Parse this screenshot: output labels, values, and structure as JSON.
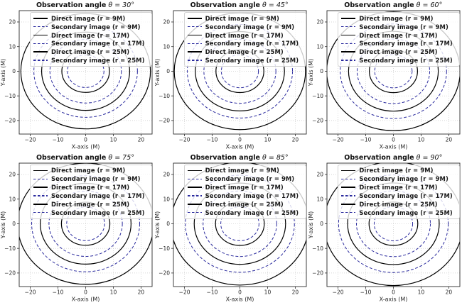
{
  "figure": {
    "background": "#ffffff",
    "rows": 2,
    "cols": 3
  },
  "style": {
    "direct_color": "#000000",
    "secondary_color": "#2b2b9e",
    "grid_color": "#c9c9c9",
    "spine_color": "#2b2b2b",
    "tick_label_color": "#3a3a3a"
  },
  "chart_data": [
    {
      "type": "line",
      "title": "Observation angle θ = 30°",
      "title_prefix": "Observation angle",
      "title_math": "θ = 30°",
      "xlabel": "X-axis (M)",
      "ylabel": "Y-axis (M)",
      "xticks": [
        -20,
        -10,
        0,
        10,
        20
      ],
      "yticks": [
        -20,
        -10,
        0,
        10,
        20
      ],
      "xlim": [
        -24,
        24
      ],
      "ylim": [
        -25.5,
        24.6
      ],
      "grid": true,
      "legend_position": "upper right",
      "series": [
        {
          "name": "Direct image (r = 9M)",
          "shape": "circle",
          "center": [
            0,
            0
          ],
          "radius": 8.6,
          "linestyle": "solid",
          "color": "#000000"
        },
        {
          "name": "Secondary image (r = 9M)",
          "shape": "circle",
          "center": [
            0,
            0
          ],
          "radius": 6.6,
          "linestyle": "dashed",
          "color": "#2b2b9e"
        },
        {
          "name": "Direct image (r = 17M)",
          "shape": "circle",
          "center": [
            0,
            0
          ],
          "radius": 15.9,
          "linestyle": "solid",
          "color": "#000000"
        },
        {
          "name": "Secondary image (r = 17M)",
          "shape": "circle",
          "center": [
            0,
            0
          ],
          "radius": 12.9,
          "linestyle": "dashed",
          "color": "#2b2b9e"
        },
        {
          "name": "Direct image (r = 25M)",
          "shape": "circle",
          "center": [
            0,
            0
          ],
          "radius": 23.4,
          "linestyle": "solid",
          "color": "#000000"
        },
        {
          "name": "Secondary image (r = 25M)",
          "shape": "circle",
          "center": [
            0,
            0
          ],
          "radius": 18.7,
          "linestyle": "dashed",
          "color": "#2b2b9e"
        }
      ]
    },
    {
      "type": "line",
      "title": "Observation angle θ = 45°",
      "title_prefix": "Observation angle",
      "title_math": "θ = 45°",
      "xlabel": "X-axis (M)",
      "ylabel": "Y-axis (M)",
      "xticks": [
        -20,
        -10,
        0,
        10,
        20
      ],
      "yticks": [
        -20,
        -10,
        0,
        10,
        20
      ],
      "xlim": [
        -24,
        24
      ],
      "ylim": [
        -25.5,
        24.6
      ],
      "grid": true,
      "legend_position": "upper right",
      "series": [
        {
          "name": "Direct image (r = 9M)",
          "shape": "circle",
          "center": [
            0,
            0
          ],
          "radius": 8.65,
          "linestyle": "solid",
          "color": "#000000"
        },
        {
          "name": "Secondary image (r = 9M)",
          "shape": "circle",
          "center": [
            0,
            0
          ],
          "radius": 6.7,
          "linestyle": "dashed",
          "color": "#2b2b9e"
        },
        {
          "name": "Direct image (r = 17M)",
          "shape": "circle",
          "center": [
            0,
            0
          ],
          "radius": 16.1,
          "linestyle": "solid",
          "color": "#000000"
        },
        {
          "name": "Secondary image (r = 17M)",
          "shape": "circle",
          "center": [
            0,
            0
          ],
          "radius": 13.0,
          "linestyle": "dashed",
          "color": "#2b2b9e"
        },
        {
          "name": "Direct image (r = 25M)",
          "shape": "circle",
          "center": [
            0,
            0
          ],
          "radius": 23.7,
          "linestyle": "solid",
          "color": "#000000"
        },
        {
          "name": "Secondary image (r = 25M)",
          "shape": "circle",
          "center": [
            0,
            0
          ],
          "radius": 19.0,
          "linestyle": "dashed",
          "color": "#2b2b9e"
        }
      ]
    },
    {
      "type": "line",
      "title": "Observation angle θ = 60°",
      "title_prefix": "Observation angle",
      "title_math": "θ = 60°",
      "xlabel": "X-axis (M)",
      "ylabel": "Y-axis (M)",
      "xticks": [
        -20,
        -10,
        0,
        10,
        20
      ],
      "yticks": [
        -20,
        -10,
        0,
        10,
        20
      ],
      "xlim": [
        -24,
        24
      ],
      "ylim": [
        -25.5,
        24.6
      ],
      "grid": true,
      "legend_position": "upper right",
      "series": [
        {
          "name": "Direct image (r = 9M)",
          "shape": "circle",
          "center": [
            0,
            0
          ],
          "radius": 8.7,
          "linestyle": "solid",
          "color": "#000000"
        },
        {
          "name": "Secondary image (r = 9M)",
          "shape": "circle",
          "center": [
            0,
            0
          ],
          "radius": 6.75,
          "linestyle": "dashed",
          "color": "#2b2b9e"
        },
        {
          "name": "Direct image (r = 17M)",
          "shape": "circle",
          "center": [
            0,
            0
          ],
          "radius": 16.2,
          "linestyle": "solid",
          "color": "#000000"
        },
        {
          "name": "Secondary image (r = 17M)",
          "shape": "circle",
          "center": [
            0,
            0
          ],
          "radius": 13.1,
          "linestyle": "dashed",
          "color": "#2b2b9e"
        },
        {
          "name": "Direct image (r = 25M)",
          "shape": "circle",
          "center": [
            0,
            0
          ],
          "radius": 24.1,
          "linestyle": "solid",
          "color": "#000000"
        },
        {
          "name": "Secondary image (r = 25M)",
          "shape": "circle",
          "center": [
            0,
            0
          ],
          "radius": 19.2,
          "linestyle": "dashed",
          "color": "#2b2b9e"
        }
      ]
    },
    {
      "type": "line",
      "title": "Observation angle θ = 75°",
      "title_prefix": "Observation angle",
      "title_math": "θ = 75°",
      "xlabel": "X-axis (M)",
      "ylabel": "Y-axis (M)",
      "xticks": [
        -20,
        -10,
        0,
        10,
        20
      ],
      "yticks": [
        -20,
        -10,
        0,
        10,
        20
      ],
      "xlim": [
        -24,
        24
      ],
      "ylim": [
        -25.5,
        24.6
      ],
      "grid": true,
      "legend_position": "upper right",
      "series": [
        {
          "name": "Direct image (r = 9M)",
          "shape": "circle",
          "center": [
            0,
            0
          ],
          "radius": 8.75,
          "linestyle": "solid",
          "color": "#000000"
        },
        {
          "name": "Secondary image (r = 9M)",
          "shape": "circle",
          "center": [
            0,
            0
          ],
          "radius": 6.85,
          "linestyle": "dashed",
          "color": "#2b2b9e"
        },
        {
          "name": "Direct image (r = 17M)",
          "shape": "circle",
          "center": [
            0,
            0
          ],
          "radius": 16.4,
          "linestyle": "solid",
          "color": "#000000"
        },
        {
          "name": "Secondary image (r = 17M)",
          "shape": "circle",
          "center": [
            0,
            0
          ],
          "radius": 13.25,
          "linestyle": "dashed",
          "color": "#2b2b9e"
        },
        {
          "name": "Direct image (r = 25M)",
          "shape": "circle",
          "center": [
            0,
            0
          ],
          "radius": 24.6,
          "linestyle": "solid",
          "color": "#000000"
        },
        {
          "name": "Secondary image (r = 25M)",
          "shape": "circle",
          "center": [
            0,
            0
          ],
          "radius": 19.5,
          "linestyle": "dashed",
          "color": "#2b2b9e"
        }
      ]
    },
    {
      "type": "line",
      "title": "Observation angle θ = 85°",
      "title_prefix": "Observation angle",
      "title_math": "θ = 85°",
      "xlabel": "X-axis (M)",
      "ylabel": "Y-axis (M)",
      "xticks": [
        -20,
        -10,
        0,
        10,
        20
      ],
      "yticks": [
        -20,
        -10,
        0,
        10,
        20
      ],
      "xlim": [
        -24,
        24
      ],
      "ylim": [
        -25.5,
        24.6
      ],
      "grid": true,
      "legend_position": "upper right",
      "series": [
        {
          "name": "Direct image (r = 9M)",
          "shape": "circle",
          "center": [
            0,
            0
          ],
          "radius": 8.8,
          "linestyle": "solid",
          "color": "#000000"
        },
        {
          "name": "Secondary image (r = 9M)",
          "shape": "circle",
          "center": [
            0,
            0
          ],
          "radius": 6.9,
          "linestyle": "dashed",
          "color": "#2b2b9e"
        },
        {
          "name": "Direct image (r = 17M)",
          "shape": "circle",
          "center": [
            0,
            0
          ],
          "radius": 16.5,
          "linestyle": "solid",
          "color": "#000000"
        },
        {
          "name": "Secondary image (r = 17M)",
          "shape": "circle",
          "center": [
            0,
            0
          ],
          "radius": 13.3,
          "linestyle": "dashed",
          "color": "#2b2b9e"
        },
        {
          "name": "Direct image (r = 25M)",
          "shape": "circle",
          "center": [
            0,
            0
          ],
          "radius": 24.9,
          "linestyle": "solid",
          "color": "#000000"
        },
        {
          "name": "Secondary image (r = 25M)",
          "shape": "circle",
          "center": [
            0,
            0
          ],
          "radius": 19.7,
          "linestyle": "dashed",
          "color": "#2b2b9e"
        }
      ]
    },
    {
      "type": "line",
      "title": "Observation angle θ = 90°",
      "title_prefix": "Observation angle",
      "title_math": "θ = 90°",
      "xlabel": "X-axis (M)",
      "ylabel": "Y-axis (M)",
      "xticks": [
        -20,
        -10,
        0,
        10,
        20
      ],
      "yticks": [
        -20,
        -10,
        0,
        10,
        20
      ],
      "xlim": [
        -24,
        24
      ],
      "ylim": [
        -25.5,
        24.6
      ],
      "grid": true,
      "legend_position": "upper right",
      "series": [
        {
          "name": "Direct image (r = 9M)",
          "shape": "circle",
          "center": [
            0,
            0
          ],
          "radius": 8.8,
          "linestyle": "solid",
          "color": "#000000"
        },
        {
          "name": "Secondary image (r = 9M)",
          "shape": "circle",
          "center": [
            0,
            0
          ],
          "radius": 6.95,
          "linestyle": "dashed",
          "color": "#2b2b9e"
        },
        {
          "name": "Direct image (r = 17M)",
          "shape": "circle",
          "center": [
            0,
            0
          ],
          "radius": 16.55,
          "linestyle": "solid",
          "color": "#000000"
        },
        {
          "name": "Secondary image (r = 17M)",
          "shape": "circle",
          "center": [
            0,
            0
          ],
          "radius": 13.35,
          "linestyle": "dashed",
          "color": "#2b2b9e"
        },
        {
          "name": "Direct image (r = 25M)",
          "shape": "circle",
          "center": [
            0,
            0
          ],
          "radius": 25.1,
          "linestyle": "solid",
          "color": "#000000"
        },
        {
          "name": "Secondary image (r = 25M)",
          "shape": "circle",
          "center": [
            0,
            0
          ],
          "radius": 19.8,
          "linestyle": "dashed",
          "color": "#2b2b9e"
        }
      ]
    }
  ]
}
